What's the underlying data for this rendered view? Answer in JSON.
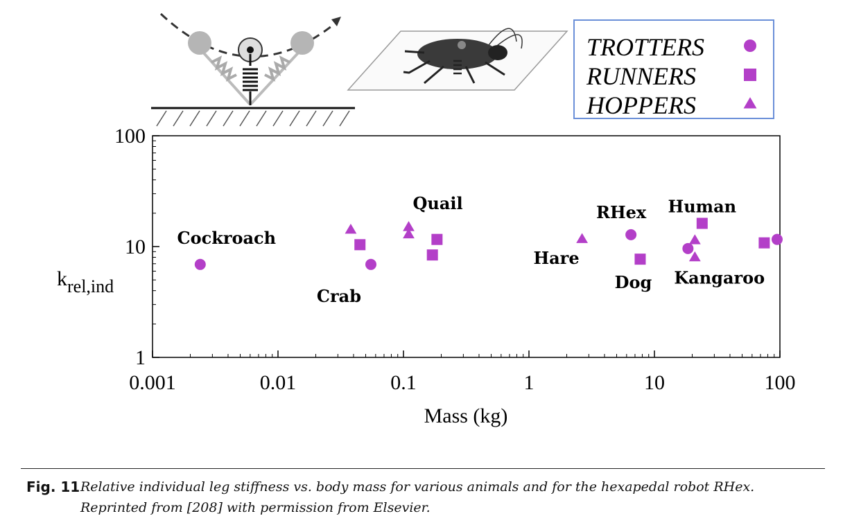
{
  "chart_data": {
    "type": "scatter",
    "x_scale": "log",
    "y_scale": "log",
    "xlim": [
      0.001,
      100
    ],
    "ylim": [
      1,
      100
    ],
    "xlabel": "Mass (kg)",
    "ylabel": "k",
    "ylabel_sub": "rel,ind",
    "x_ticks": [
      "0.001",
      "0.01",
      "0.1",
      "1",
      "10",
      "100"
    ],
    "y_ticks": [
      "1",
      "10",
      "100"
    ],
    "grid": false,
    "legend_position": "top-right",
    "color": "#b33fc8",
    "series": [
      {
        "name": "TROTTERS",
        "marker": "circle",
        "points": [
          {
            "x": 0.0024,
            "y": 6.9
          },
          {
            "x": 0.055,
            "y": 6.9
          },
          {
            "x": 6.5,
            "y": 12.8
          },
          {
            "x": 18.5,
            "y": 9.6
          },
          {
            "x": 95,
            "y": 11.6
          }
        ]
      },
      {
        "name": "RUNNERS",
        "marker": "square",
        "points": [
          {
            "x": 0.045,
            "y": 10.4
          },
          {
            "x": 0.17,
            "y": 8.4
          },
          {
            "x": 0.185,
            "y": 11.6
          },
          {
            "x": 7.7,
            "y": 7.7
          },
          {
            "x": 24,
            "y": 16.2
          },
          {
            "x": 75,
            "y": 10.8
          }
        ]
      },
      {
        "name": "HOPPERS",
        "marker": "triangle",
        "points": [
          {
            "x": 0.038,
            "y": 14.2
          },
          {
            "x": 0.11,
            "y": 15.0
          },
          {
            "x": 0.11,
            "y": 12.9
          },
          {
            "x": 2.65,
            "y": 11.7
          },
          {
            "x": 21,
            "y": 11.4
          },
          {
            "x": 21,
            "y": 8.0
          }
        ]
      }
    ],
    "annotations": [
      {
        "text": "Cockroach",
        "x": 0.0024,
        "y": 6.9,
        "anchor": "above"
      },
      {
        "text": "Crab",
        "x": 0.055,
        "y": 6.9,
        "anchor": "below-left"
      },
      {
        "text": "Quail",
        "x": 0.11,
        "y": 15.0,
        "anchor": "above-right"
      },
      {
        "text": "Hare",
        "x": 2.65,
        "y": 11.7,
        "anchor": "below-left"
      },
      {
        "text": "RHex",
        "x": 6.5,
        "y": 12.8,
        "anchor": "above"
      },
      {
        "text": "Dog",
        "x": 7.7,
        "y": 7.7,
        "anchor": "below"
      },
      {
        "text": "Human",
        "x": 24,
        "y": 16.2,
        "anchor": "above"
      },
      {
        "text": "Kangaroo",
        "x": 21,
        "y": 8.0,
        "anchor": "below-right"
      }
    ]
  },
  "caption": {
    "label": "Fig. 11",
    "text": "Relative individual leg stiffness vs. body mass for various animals and for the hexapedal robot RHex. Reprinted from [208] with permission from Elsevier."
  }
}
